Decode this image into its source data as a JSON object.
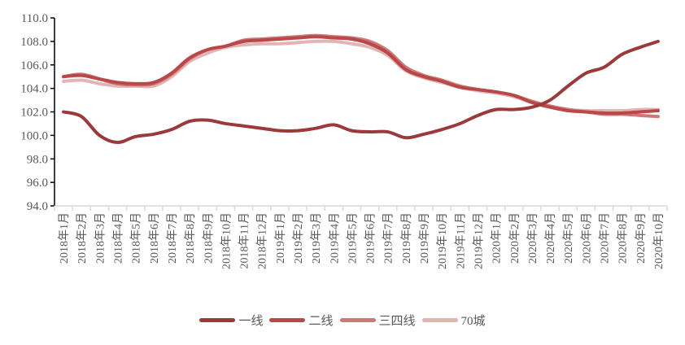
{
  "chart_data": {
    "type": "line",
    "title": "",
    "xlabel": "",
    "ylabel": "",
    "ylim": [
      94,
      110
    ],
    "yticks": [
      "94.0",
      "96.0",
      "98.0",
      "100.0",
      "102.0",
      "104.0",
      "106.0",
      "108.0",
      "110.0"
    ],
    "grid": false,
    "legend_position": "bottom",
    "categories": [
      "2018年1月",
      "2018年2月",
      "2018年3月",
      "2018年4月",
      "2018年5月",
      "2018年6月",
      "2018年7月",
      "2018年8月",
      "2018年9月",
      "2018年10月",
      "2018年11月",
      "2018年12月",
      "2019年1月",
      "2019年2月",
      "2019年3月",
      "2019年4月",
      "2019年5月",
      "2019年6月",
      "2019年7月",
      "2019年8月",
      "2019年9月",
      "2019年10月",
      "2019年11月",
      "2019年12月",
      "2020年1月",
      "2020年2月",
      "2020年3月",
      "2020年4月",
      "2020年5月",
      "2020年6月",
      "2020年7月",
      "2020年8月",
      "2020年9月",
      "2020年10月"
    ],
    "series": [
      {
        "name": "一线",
        "color": "#9b3a3a",
        "values": [
          102.0,
          101.6,
          100.0,
          99.4,
          99.9,
          100.1,
          100.5,
          101.2,
          101.3,
          101.0,
          100.8,
          100.6,
          100.4,
          100.4,
          100.6,
          100.9,
          100.4,
          100.3,
          100.3,
          99.8,
          100.1,
          100.5,
          101.0,
          101.7,
          102.2,
          102.2,
          102.4,
          103.0,
          104.2,
          105.3,
          105.8,
          106.9,
          107.5,
          108.0
        ]
      },
      {
        "name": "二线",
        "color": "#b94848",
        "values": [
          105.0,
          105.1,
          104.8,
          104.5,
          104.4,
          104.5,
          105.3,
          106.6,
          107.3,
          107.6,
          108.0,
          108.1,
          108.2,
          108.3,
          108.4,
          108.3,
          108.2,
          107.8,
          107.0,
          105.6,
          105.0,
          104.6,
          104.1,
          103.9,
          103.7,
          103.4,
          102.8,
          102.4,
          102.1,
          102.0,
          101.9,
          101.9,
          102.0,
          102.1
        ]
      },
      {
        "name": "三四线",
        "color": "#cc7878",
        "values": [
          105.0,
          105.2,
          104.8,
          104.4,
          104.3,
          104.4,
          105.2,
          106.5,
          107.3,
          107.6,
          108.1,
          108.2,
          108.3,
          108.4,
          108.5,
          108.4,
          108.3,
          108.0,
          107.2,
          105.8,
          105.1,
          104.7,
          104.2,
          103.9,
          103.7,
          103.4,
          102.9,
          102.5,
          102.2,
          102.0,
          101.8,
          101.8,
          101.7,
          101.6
        ]
      },
      {
        "name": "70城",
        "color": "#e2b4b4",
        "values": [
          104.6,
          104.7,
          104.4,
          104.2,
          104.2,
          104.2,
          105.0,
          106.3,
          107.0,
          107.5,
          107.7,
          107.8,
          107.8,
          107.9,
          108.0,
          108.0,
          107.8,
          107.5,
          106.8,
          105.5,
          104.9,
          104.5,
          104.1,
          103.8,
          103.6,
          103.3,
          102.8,
          102.5,
          102.2,
          102.1,
          102.1,
          102.1,
          102.2,
          102.2
        ]
      }
    ]
  }
}
